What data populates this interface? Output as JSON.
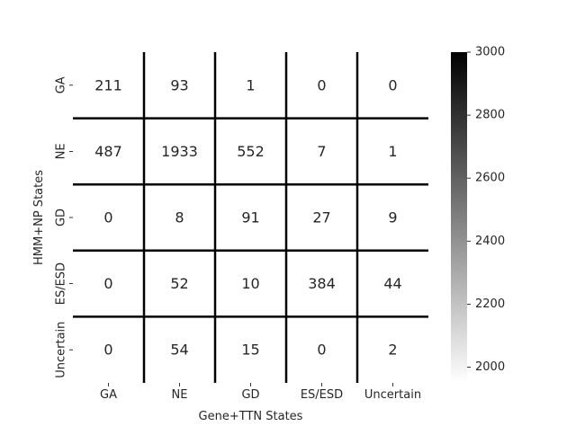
{
  "chart_data": {
    "type": "heatmap",
    "title": "",
    "xlabel": "Gene+TTN States",
    "ylabel": "HMM+NP States",
    "x_categories": [
      "GA",
      "NE",
      "GD",
      "ES/ESD",
      "Uncertain"
    ],
    "y_categories": [
      "GA",
      "NE",
      "GD",
      "ES/ESD",
      "Uncertain"
    ],
    "values": [
      [
        211,
        93,
        1,
        0,
        0
      ],
      [
        487,
        1933,
        552,
        7,
        1
      ],
      [
        0,
        8,
        91,
        27,
        9
      ],
      [
        0,
        52,
        10,
        384,
        44
      ],
      [
        0,
        54,
        15,
        0,
        2
      ]
    ],
    "colorscale": "Greys",
    "vmin": 1950,
    "vmax": 3000,
    "colorbar_ticks": [
      2000,
      2200,
      2400,
      2600,
      2800,
      3000
    ],
    "colors": {
      "low": "#ffffff",
      "high": "#000000",
      "gridline": "#000000",
      "annotation": "#262626"
    }
  }
}
